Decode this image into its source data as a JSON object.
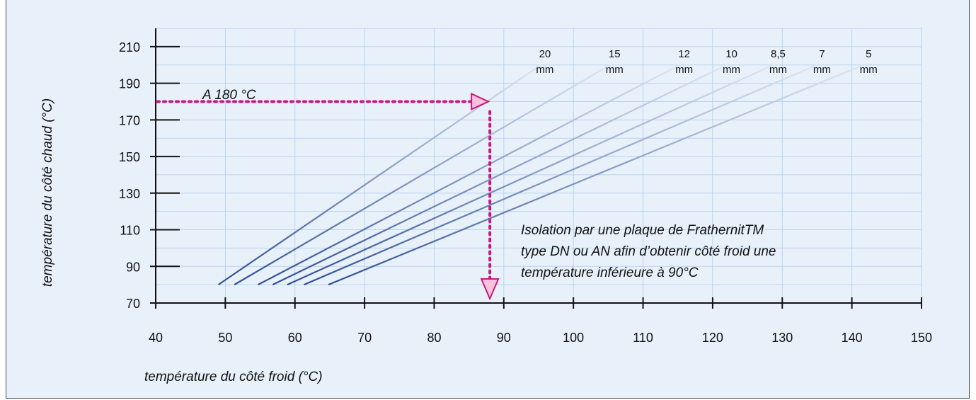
{
  "chart_data": {
    "type": "line",
    "xlabel": "température du côté froid (°C)",
    "ylabel": "température du côté chaud (°C)",
    "xlim": [
      40,
      150
    ],
    "ylim": [
      70,
      220
    ],
    "xticks": [
      "40",
      "50",
      "60",
      "70",
      "80",
      "90",
      "100",
      "110",
      "120",
      "130",
      "140",
      "150"
    ],
    "yticks": [
      "70",
      "90",
      "110",
      "130",
      "150",
      "170",
      "190",
      "210"
    ],
    "grid": true,
    "series": [
      {
        "name": "20 mm",
        "x": [
          49,
          95.5
        ],
        "y": [
          80,
          200.5
        ]
      },
      {
        "name": "15 mm",
        "x": [
          51.3,
          105.5
        ],
        "y": [
          80,
          200.5
        ]
      },
      {
        "name": "12 mm",
        "x": [
          54.7,
          115.5
        ],
        "y": [
          80,
          200.5
        ]
      },
      {
        "name": "10 mm",
        "x": [
          56.8,
          122.3
        ],
        "y": [
          80,
          200.5
        ]
      },
      {
        "name": "8,5 mm",
        "x": [
          58.9,
          129.0
        ],
        "y": [
          80,
          200.5
        ]
      },
      {
        "name": "7 mm",
        "x": [
          61.3,
          135.3
        ],
        "y": [
          80,
          200.5
        ]
      },
      {
        "name": "5 mm",
        "x": [
          64.8,
          142.0
        ],
        "y": [
          80,
          200.5
        ]
      }
    ],
    "series_labels": [
      {
        "line1": "20",
        "line2": "mm"
      },
      {
        "line1": "15",
        "line2": "mm"
      },
      {
        "line1": "12",
        "line2": "mm"
      },
      {
        "line1": "10",
        "line2": "mm"
      },
      {
        "line1": "8,5",
        "line2": "mm"
      },
      {
        "line1": "7",
        "line2": "mm"
      },
      {
        "line1": "5",
        "line2": "mm"
      }
    ],
    "reading": {
      "x": 88,
      "y": 180,
      "label": "A 180 °C"
    },
    "annotation": [
      "Isolation par une plaque de FrathernitTM",
      "type DN ou AN afin d’obtenir côté froid une",
      "température inférieure à 90°C"
    ],
    "colors": {
      "background": "#e8f1fa",
      "grid": "#b9d4f0",
      "axis": "#111111",
      "line_dark": "#2e4e92",
      "line_light": "#dde6f2",
      "marker": "#c8197e",
      "marker_fill": "#f7c3dc"
    }
  }
}
